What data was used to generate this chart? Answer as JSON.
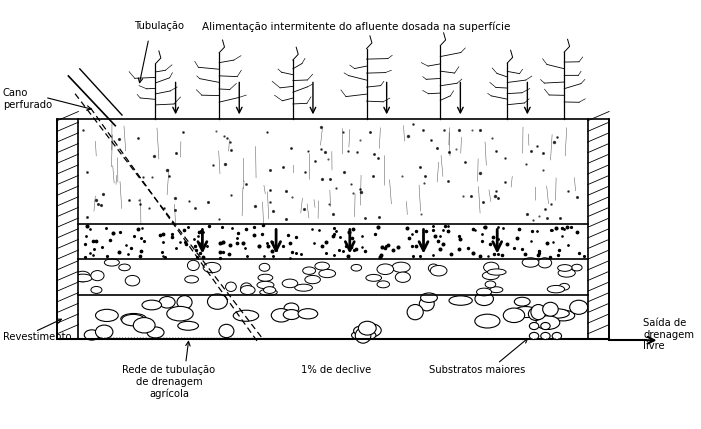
{
  "fig_width": 7.01,
  "fig_height": 4.29,
  "dpi": 100,
  "bg_color": "#ffffff",
  "label_tubulacao": "Tubulação",
  "label_cano": "Cano\nperfurado",
  "label_alimentacao": "Alimentação intermitente do afluente dosada na superfície",
  "label_revestimento": "Revestimento",
  "label_rede": "Rede de tubulação\nde drenagem\nagrícola",
  "label_declive": "1% de declive",
  "label_substratos": "Substratos maiores",
  "label_saida": "Saída de\ndrenagem\nlivre",
  "black": "#000000"
}
